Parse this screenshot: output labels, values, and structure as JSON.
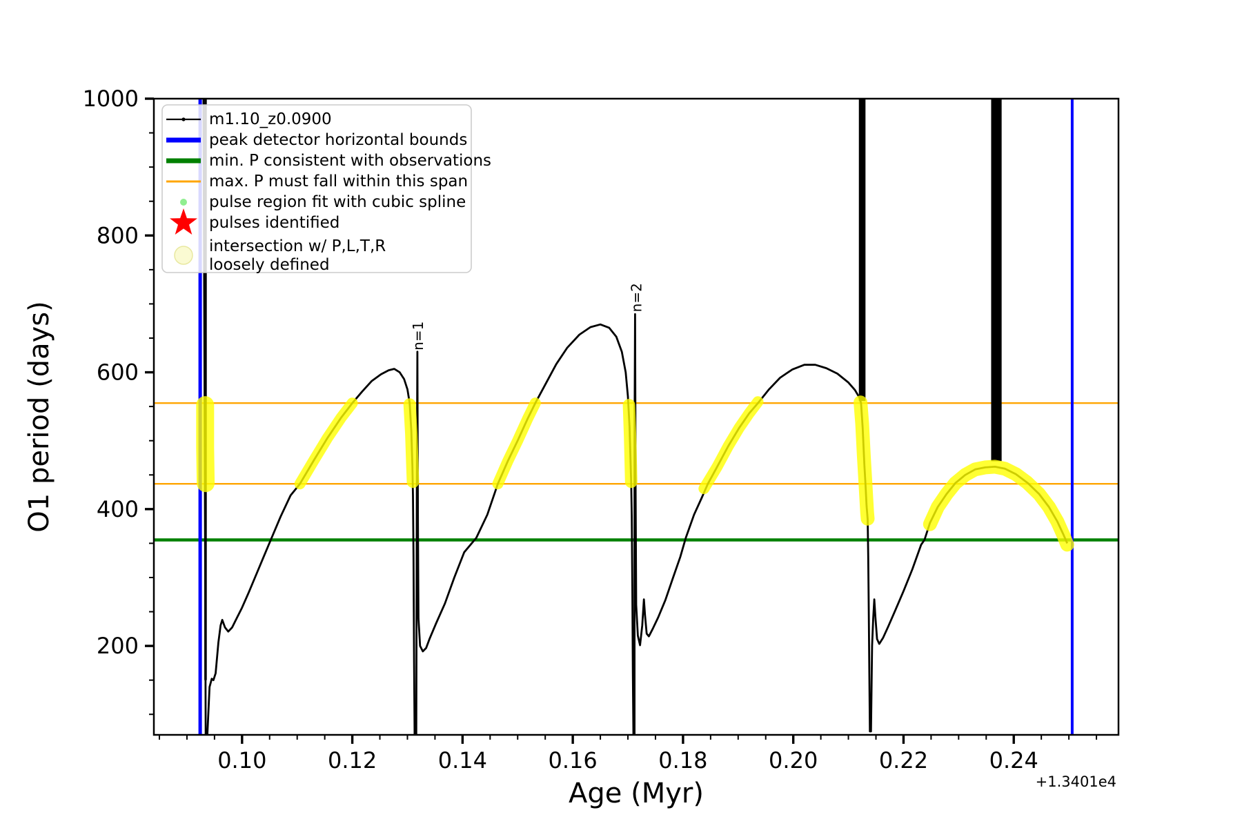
{
  "chart_data": {
    "type": "line",
    "title": "",
    "xlabel": "Age (Myr)",
    "ylabel": "O1 period (days)",
    "x_offset_text": "+1.3401e4",
    "xlim": [
      0.084,
      0.259
    ],
    "ylim": [
      70,
      1000
    ],
    "grid": false,
    "xticks": {
      "major": [
        0.1,
        0.12,
        0.14,
        0.16,
        0.18,
        0.2,
        0.22,
        0.24
      ],
      "labels": [
        "0.10",
        "0.12",
        "0.14",
        "0.16",
        "0.18",
        "0.20",
        "0.22",
        "0.24"
      ],
      "minor_step": 0.005
    },
    "yticks": {
      "major": [
        200,
        400,
        600,
        800,
        1000
      ],
      "labels": [
        "200",
        "400",
        "600",
        "800",
        "1000"
      ],
      "minor_step": 50
    },
    "hlines": [
      {
        "name": "max-P-span-upper",
        "y": 555,
        "color": "#FFA500",
        "lw": 2.4
      },
      {
        "name": "max-P-span-lower",
        "y": 437,
        "color": "#FFA500",
        "lw": 2.4
      },
      {
        "name": "min-P-observed",
        "y": 355,
        "color": "#008000",
        "lw": 4.5
      }
    ],
    "vlines": [
      {
        "name": "peak-detector-left-bound",
        "x": 0.0924,
        "color": "#0000FF",
        "lw": 5
      },
      {
        "name": "peak-detector-right-bound",
        "x": 0.2506,
        "color": "#0000FF",
        "lw": 4
      }
    ],
    "bars": [
      {
        "name": "dense-pulsation-track-1",
        "x0": 0.09315,
        "x1": 0.0936,
        "y0": 150,
        "y1": 1000
      },
      {
        "name": "dense-pulsation-track-2",
        "x0": 0.2119,
        "x1": 0.2131,
        "y0": 558,
        "y1": 1000
      },
      {
        "name": "dense-pulsation-track-3",
        "x0": 0.2359,
        "x1": 0.2378,
        "y0": 470,
        "y1": 1000
      }
    ],
    "series": {
      "name": "m1.10_z0.0900",
      "color": "#000000",
      "lw": 2.8,
      "points": [
        [
          0.093,
          1000
        ],
        [
          0.0931,
          780
        ],
        [
          0.0932,
          560
        ],
        [
          0.0933,
          330
        ],
        [
          0.0934,
          70
        ],
        [
          0.0937,
          70
        ],
        [
          0.0941,
          140
        ],
        [
          0.0945,
          152
        ],
        [
          0.0948,
          150
        ],
        [
          0.0952,
          160
        ],
        [
          0.0957,
          205
        ],
        [
          0.0961,
          230
        ],
        [
          0.0964,
          238
        ],
        [
          0.0969,
          227
        ],
        [
          0.0975,
          221
        ],
        [
          0.0982,
          227
        ],
        [
          0.099,
          240
        ],
        [
          0.1,
          256
        ],
        [
          0.1012,
          278
        ],
        [
          0.1025,
          303
        ],
        [
          0.104,
          332
        ],
        [
          0.1052,
          355
        ],
        [
          0.107,
          389
        ],
        [
          0.1088,
          420
        ],
        [
          0.1105,
          437
        ],
        [
          0.113,
          471
        ],
        [
          0.1155,
          504
        ],
        [
          0.118,
          534
        ],
        [
          0.12,
          555
        ],
        [
          0.1218,
          572
        ],
        [
          0.1235,
          587
        ],
        [
          0.1252,
          597
        ],
        [
          0.1266,
          603
        ],
        [
          0.1276,
          605
        ],
        [
          0.1286,
          600
        ],
        [
          0.1294,
          590
        ],
        [
          0.13,
          575
        ],
        [
          0.1304,
          555
        ],
        [
          0.1307,
          515
        ],
        [
          0.1309,
          462
        ],
        [
          0.131,
          420
        ],
        [
          0.1311,
          330
        ],
        [
          0.1312,
          180
        ],
        [
          0.1313,
          70
        ],
        [
          0.1316,
          70
        ],
        [
          0.1317,
          430
        ],
        [
          0.1318,
          630
        ],
        [
          0.1319,
          380
        ],
        [
          0.132,
          240
        ],
        [
          0.1323,
          200
        ],
        [
          0.1328,
          192
        ],
        [
          0.1334,
          197
        ],
        [
          0.134,
          210
        ],
        [
          0.1352,
          233
        ],
        [
          0.1368,
          262
        ],
        [
          0.1385,
          300
        ],
        [
          0.1403,
          337
        ],
        [
          0.1425,
          358
        ],
        [
          0.1445,
          392
        ],
        [
          0.1464,
          437
        ],
        [
          0.1482,
          470
        ],
        [
          0.15,
          500
        ],
        [
          0.1518,
          532
        ],
        [
          0.1532,
          555
        ],
        [
          0.155,
          582
        ],
        [
          0.157,
          612
        ],
        [
          0.159,
          636
        ],
        [
          0.1612,
          655
        ],
        [
          0.1632,
          666
        ],
        [
          0.165,
          670
        ],
        [
          0.1666,
          665
        ],
        [
          0.1679,
          652
        ],
        [
          0.1689,
          630
        ],
        [
          0.1696,
          600
        ],
        [
          0.17,
          565
        ],
        [
          0.1703,
          520
        ],
        [
          0.1705,
          465
        ],
        [
          0.1706,
          437
        ],
        [
          0.1707,
          390
        ],
        [
          0.1708,
          290
        ],
        [
          0.1709,
          160
        ],
        [
          0.171,
          70
        ],
        [
          0.1712,
          70
        ],
        [
          0.1712,
          500
        ],
        [
          0.1713,
          685
        ],
        [
          0.1714,
          420
        ],
        [
          0.1715,
          260
        ],
        [
          0.1718,
          215
        ],
        [
          0.1722,
          201
        ],
        [
          0.1726,
          230
        ],
        [
          0.1729,
          268
        ],
        [
          0.1731,
          245
        ],
        [
          0.1734,
          218
        ],
        [
          0.1738,
          214
        ],
        [
          0.1745,
          225
        ],
        [
          0.1755,
          242
        ],
        [
          0.1768,
          267
        ],
        [
          0.1782,
          300
        ],
        [
          0.1795,
          330
        ],
        [
          0.1805,
          358
        ],
        [
          0.182,
          392
        ],
        [
          0.1833,
          415
        ],
        [
          0.1845,
          437
        ],
        [
          0.1862,
          462
        ],
        [
          0.1882,
          492
        ],
        [
          0.1902,
          519
        ],
        [
          0.192,
          540
        ],
        [
          0.1936,
          555
        ],
        [
          0.1956,
          575
        ],
        [
          0.1976,
          592
        ],
        [
          0.1998,
          604
        ],
        [
          0.202,
          611
        ],
        [
          0.204,
          611
        ],
        [
          0.206,
          606
        ],
        [
          0.208,
          598
        ],
        [
          0.21,
          585
        ],
        [
          0.2112,
          574
        ],
        [
          0.212,
          563
        ],
        [
          0.2123,
          555
        ],
        [
          0.2126,
          518
        ],
        [
          0.2129,
          465
        ],
        [
          0.2131,
          437
        ],
        [
          0.2133,
          405
        ],
        [
          0.2135,
          385
        ],
        [
          0.2136,
          330
        ],
        [
          0.2137,
          250
        ],
        [
          0.2138,
          160
        ],
        [
          0.2139,
          75
        ],
        [
          0.2141,
          75
        ],
        [
          0.2143,
          200
        ],
        [
          0.2145,
          240
        ],
        [
          0.2147,
          268
        ],
        [
          0.2149,
          242
        ],
        [
          0.2152,
          210
        ],
        [
          0.2156,
          203
        ],
        [
          0.2163,
          212
        ],
        [
          0.2172,
          228
        ],
        [
          0.2185,
          252
        ],
        [
          0.22,
          280
        ],
        [
          0.2216,
          312
        ],
        [
          0.2232,
          348
        ],
        [
          0.2238,
          355
        ],
        [
          0.2248,
          380
        ],
        [
          0.2262,
          403
        ],
        [
          0.2278,
          422
        ],
        [
          0.2294,
          438
        ],
        [
          0.2312,
          450
        ],
        [
          0.233,
          458
        ],
        [
          0.2348,
          461
        ],
        [
          0.2366,
          462
        ],
        [
          0.2384,
          459
        ],
        [
          0.2404,
          451
        ],
        [
          0.2424,
          439
        ],
        [
          0.2427,
          437
        ],
        [
          0.2446,
          422
        ],
        [
          0.2464,
          403
        ],
        [
          0.2479,
          382
        ],
        [
          0.249,
          363
        ],
        [
          0.2497,
          350
        ]
      ]
    },
    "highlights": {
      "name": "intersection-loosely-defined",
      "color": "#FFFF00",
      "opacity": 0.8,
      "segments": [
        {
          "lw": 26,
          "points": [
            [
              0.0933,
              552
            ],
            [
              0.0933,
              490
            ],
            [
              0.0934,
              438
            ]
          ]
        },
        {
          "lw": 16,
          "points": [
            [
              0.1105,
              437
            ],
            [
              0.113,
              471
            ],
            [
              0.1155,
              504
            ],
            [
              0.118,
              534
            ],
            [
              0.12,
              555
            ]
          ]
        },
        {
          "lw": 18,
          "points": [
            [
              0.1304,
              553
            ],
            [
              0.1307,
              510
            ],
            [
              0.1309,
              462
            ],
            [
              0.131,
              440
            ]
          ]
        },
        {
          "lw": 16,
          "points": [
            [
              0.1464,
              437
            ],
            [
              0.1482,
              470
            ],
            [
              0.15,
              500
            ],
            [
              0.1518,
              532
            ],
            [
              0.1532,
              555
            ]
          ]
        },
        {
          "lw": 18,
          "points": [
            [
              0.1702,
              552
            ],
            [
              0.1704,
              505
            ],
            [
              0.1706,
              440
            ]
          ]
        },
        {
          "lw": 16,
          "points": [
            [
              0.1838,
              430
            ],
            [
              0.1862,
              462
            ],
            [
              0.1882,
              492
            ],
            [
              0.1902,
              519
            ],
            [
              0.192,
              540
            ],
            [
              0.1936,
              557
            ]
          ]
        },
        {
          "lw": 20,
          "points": [
            [
              0.2122,
              556
            ],
            [
              0.2125,
              525
            ],
            [
              0.2128,
              478
            ],
            [
              0.2131,
              437
            ],
            [
              0.2134,
              395
            ],
            [
              0.2135,
              386
            ]
          ]
        },
        {
          "lw": 20,
          "points": [
            [
              0.2248,
              378
            ],
            [
              0.2262,
              403
            ],
            [
              0.2278,
              422
            ],
            [
              0.2294,
              438
            ],
            [
              0.2312,
              450
            ],
            [
              0.233,
              458
            ],
            [
              0.2348,
              461
            ],
            [
              0.2366,
              462
            ],
            [
              0.2384,
              459
            ],
            [
              0.2404,
              451
            ],
            [
              0.2424,
              439
            ],
            [
              0.2446,
              422
            ],
            [
              0.2464,
              403
            ],
            [
              0.2479,
              382
            ],
            [
              0.249,
              362
            ],
            [
              0.2497,
              348
            ]
          ]
        }
      ]
    },
    "annotations": [
      {
        "name": "n1-label",
        "text": "n=1",
        "x": 0.1317,
        "y": 632,
        "rotation": -90
      },
      {
        "name": "n2-label",
        "text": "n=2",
        "x": 0.1713,
        "y": 688,
        "rotation": -90
      }
    ]
  },
  "legend": {
    "items": [
      {
        "label": "m1.10_z0.0900",
        "marker": "line-with-dot",
        "color": "#000000"
      },
      {
        "label": "peak detector horizontal bounds",
        "marker": "thick-line",
        "color": "#0000FF"
      },
      {
        "label": "min. P consistent with observations",
        "marker": "thick-line",
        "color": "#008000"
      },
      {
        "label": "max. P must fall within this span",
        "marker": "thin-line",
        "color": "#FFA500"
      },
      {
        "label": "pulse region fit with cubic spline",
        "marker": "small-dot",
        "color": "#90EE90"
      },
      {
        "label": "pulses identified",
        "marker": "star",
        "color": "#FF0000"
      },
      {
        "label_line1": "intersection w/ P,L,T,R",
        "label_line2": "loosely defined",
        "marker": "pale-circle",
        "color": "#FAFAD2"
      }
    ]
  }
}
